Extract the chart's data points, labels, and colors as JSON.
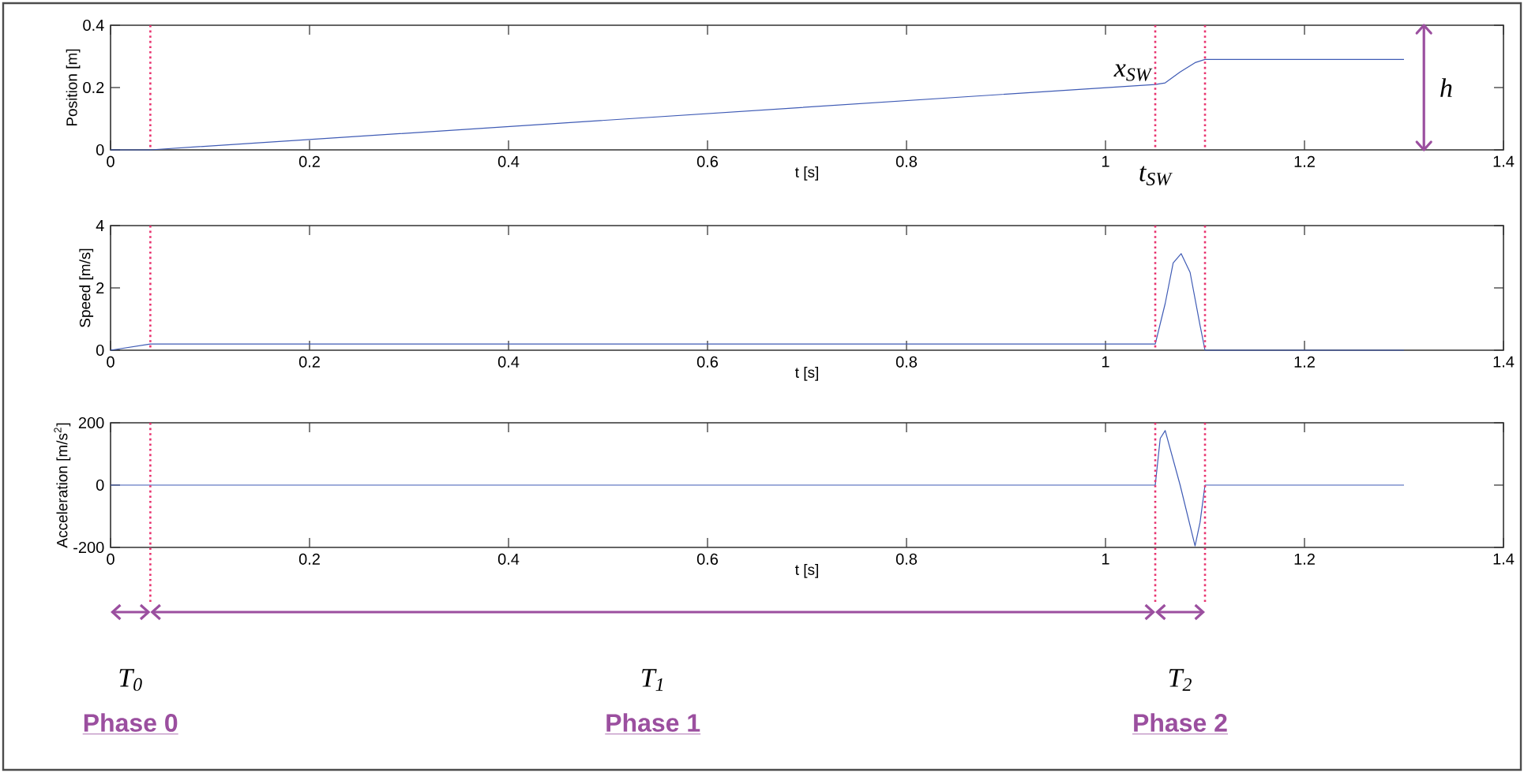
{
  "chart_data": [
    {
      "type": "line",
      "xlabel": "t [s]",
      "ylabel": "Position [m]",
      "x": [
        0,
        0.04,
        1.05,
        1.06,
        1.075,
        1.09,
        1.1,
        1.3
      ],
      "values": [
        0,
        0,
        0.21,
        0.215,
        0.25,
        0.28,
        0.29,
        0.29
      ],
      "color": "#3f5bb5",
      "marker": "none",
      "xlim": [
        0,
        1.4
      ],
      "ylim": [
        0,
        0.4
      ],
      "xticks": [
        0,
        0.2,
        0.4,
        0.6,
        0.8,
        1,
        1.2,
        1.4
      ],
      "yticks": [
        0,
        0.2,
        0.4
      ],
      "ref_lines": [
        {
          "axis": "x",
          "value": 0.04,
          "color": "#e8336f",
          "line_style": "dotted"
        },
        {
          "axis": "x",
          "value": 1.05,
          "color": "#e8336f",
          "line_style": "dotted"
        },
        {
          "axis": "x",
          "value": 1.1,
          "color": "#e8336f",
          "line_style": "dotted"
        },
        {
          "axis": "x",
          "value": 1.32,
          "color": "#9b4f9f",
          "line_style": "solid",
          "label": "h"
        }
      ],
      "annotations": [
        {
          "text": "x$_{SW}$",
          "x": 1.05,
          "y": 0.21
        },
        {
          "text": "t$_{SW}$",
          "x": 1.05,
          "y": 0
        }
      ]
    },
    {
      "type": "line",
      "xlabel": "t [s]",
      "ylabel": "Speed [m/s]",
      "x": [
        0,
        0.04,
        1.05,
        1.06,
        1.068,
        1.076,
        1.085,
        1.095,
        1.1,
        1.3
      ],
      "values": [
        0,
        0.2,
        0.2,
        1.5,
        2.8,
        3.1,
        2.5,
        0.8,
        0,
        0
      ],
      "color": "#3f5bb5",
      "marker": "none",
      "xlim": [
        0,
        1.4
      ],
      "ylim": [
        0,
        4
      ],
      "xticks": [
        0,
        0.2,
        0.4,
        0.6,
        0.8,
        1,
        1.2,
        1.4
      ],
      "yticks": [
        0,
        2,
        4
      ],
      "ref_lines": [
        {
          "axis": "x",
          "value": 0.04,
          "color": "#e8336f",
          "line_style": "dotted"
        },
        {
          "axis": "x",
          "value": 1.05,
          "color": "#e8336f",
          "line_style": "dotted"
        },
        {
          "axis": "x",
          "value": 1.1,
          "color": "#e8336f",
          "line_style": "dotted"
        }
      ]
    },
    {
      "type": "line",
      "xlabel": "t [s]",
      "ylabel": "Acceleration [m/s$^{2}$]",
      "x": [
        0,
        0.04,
        1.05,
        1.055,
        1.06,
        1.075,
        1.09,
        1.095,
        1.1,
        1.3
      ],
      "values": [
        0,
        0,
        0,
        150,
        175,
        0,
        -195,
        -120,
        0,
        0
      ],
      "color": "#3f5bb5",
      "marker": "none",
      "xlim": [
        0,
        1.4
      ],
      "ylim": [
        -200,
        200
      ],
      "xticks": [
        0,
        0.2,
        0.4,
        0.6,
        0.8,
        1,
        1.2,
        1.4
      ],
      "yticks": [
        -200,
        0,
        200
      ],
      "ref_lines": [
        {
          "axis": "x",
          "value": 0.04,
          "color": "#e8336f",
          "line_style": "dotted"
        },
        {
          "axis": "x",
          "value": 1.05,
          "color": "#e8336f",
          "line_style": "dotted"
        },
        {
          "axis": "x",
          "value": 1.1,
          "color": "#e8336f",
          "line_style": "dotted"
        }
      ],
      "annotations": [
        "T$_{0}$",
        "Phase 0",
        "T$_{1}$",
        "Phase 1",
        "T$_{2}$",
        "Phase 2"
      ]
    }
  ]
}
